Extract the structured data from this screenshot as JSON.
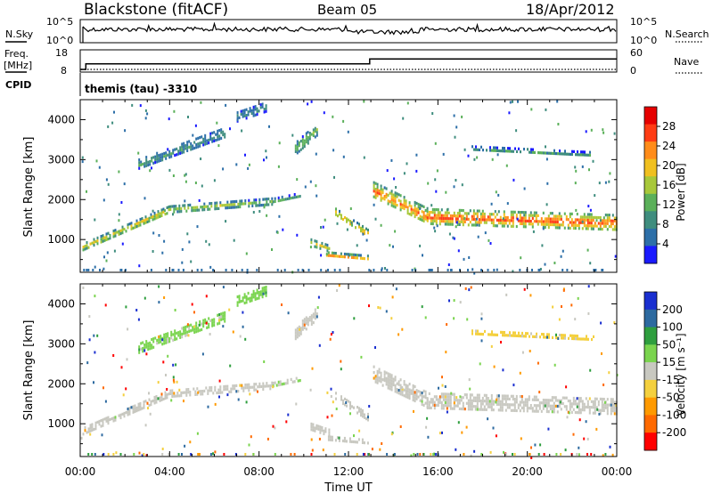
{
  "header": {
    "station": "Blackstone (fitACF)",
    "beam": "Beam 05",
    "date": "18/Apr/2012"
  },
  "noise_panel": {
    "left_label": "N.Sky",
    "right_label": "N.Search",
    "left_ticks": [
      "10^5",
      "10^0"
    ],
    "right_ticks": [
      "10^5",
      "10^0"
    ]
  },
  "freq_panel": {
    "left_label_top": "Freq.",
    "left_label_unit": "[MHz]",
    "left_ticks": [
      "18",
      "8"
    ],
    "right_label": "Nave",
    "right_ticks": [
      "60",
      "0"
    ],
    "cpid_label": "CPID",
    "cpid_text": "themis (tau) -3310",
    "freq_series": {
      "name": "freq",
      "x_hours": [
        0.0,
        0.25,
        0.25,
        12.95,
        12.95,
        24.0
      ],
      "values": [
        8.0,
        8.0,
        11.5,
        11.5,
        14.5,
        14.5
      ]
    }
  },
  "axes": {
    "x_ticks": [
      "00:00",
      "04:00",
      "08:00",
      "12:00",
      "16:00",
      "20:00",
      "00:00"
    ],
    "x_label": "Time UT",
    "y_label": "Slant Range [km]",
    "y_ticks": [
      "4000",
      "3000",
      "2000",
      "1000"
    ]
  },
  "power_colorbar": {
    "title": "Power [dB]",
    "ticks": [
      "28",
      "24",
      "20",
      "16",
      "12",
      "8",
      "4"
    ]
  },
  "velocity_colorbar": {
    "title": "Velocity [m s⁻¹]",
    "ticks": [
      "200",
      "100",
      "50",
      "15",
      "-15",
      "-50",
      "-100",
      "-200"
    ]
  },
  "chart_data": [
    {
      "type": "heatmap",
      "title": "Power [dB]",
      "xlabel": "Time UT",
      "ylabel": "Slant Range [km]",
      "xlim_hours": [
        0,
        24
      ],
      "ylim_km": [
        180,
        4500
      ],
      "color_scale": {
        "min": 0,
        "max": 30,
        "colors": [
          "#1a1aff",
          "#2d6fa8",
          "#3f8d7e",
          "#5bb05a",
          "#a8c83a",
          "#f0c020",
          "#ff8c1a",
          "#ff3c14",
          "#e60000"
        ]
      },
      "bands": [
        {
          "name": "evening band rising",
          "t_start": 0.1,
          "t_end": 4.0,
          "r_start": 830,
          "r_end": 1780,
          "width_km": 180,
          "power_db": 18
        },
        {
          "name": "day band",
          "t_start": 4.0,
          "t_end": 8.6,
          "r_start": 1780,
          "r_end": 1980,
          "width_km": 160,
          "power_db": 15
        },
        {
          "name": "day band late",
          "t_start": 8.6,
          "t_end": 9.8,
          "r_start": 1980,
          "r_end": 2120,
          "width_km": 140,
          "power_db": 10
        },
        {
          "name": "high patch",
          "t_start": 2.6,
          "t_end": 6.5,
          "r_start": 2900,
          "r_end": 3700,
          "width_km": 260,
          "power_db": 9
        },
        {
          "name": "top patch",
          "t_start": 7.0,
          "t_end": 8.3,
          "r_start": 4100,
          "r_end": 4350,
          "width_km": 220,
          "power_db": 9
        },
        {
          "name": "midday patch",
          "t_start": 9.6,
          "t_end": 10.6,
          "r_start": 3300,
          "r_end": 3800,
          "width_km": 300,
          "power_db": 13
        },
        {
          "name": "near patch A",
          "t_start": 10.3,
          "t_end": 11.1,
          "r_start": 950,
          "r_end": 800,
          "width_km": 160,
          "power_db": 18
        },
        {
          "name": "near patch B",
          "t_start": 11.0,
          "t_end": 12.9,
          "r_start": 650,
          "r_end": 560,
          "width_km": 120,
          "power_db": 22
        },
        {
          "name": "descending band",
          "t_start": 11.4,
          "t_end": 12.9,
          "r_start": 1700,
          "r_end": 1150,
          "width_km": 200,
          "power_db": 21
        },
        {
          "name": "afternoon band drop",
          "t_start": 13.1,
          "t_end": 15.5,
          "r_start": 2250,
          "r_end": 1600,
          "width_km": 420,
          "power_db": 23
        },
        {
          "name": "afternoon band",
          "t_start": 15.5,
          "t_end": 24.0,
          "r_start": 1600,
          "r_end": 1450,
          "width_km": 380,
          "power_db": 25
        },
        {
          "name": "upper afternoon",
          "t_start": 17.5,
          "t_end": 23.0,
          "r_start": 3300,
          "r_end": 3150,
          "width_km": 120,
          "power_db": 10
        }
      ]
    },
    {
      "type": "heatmap",
      "title": "Velocity [m s⁻¹]",
      "xlabel": "Time UT",
      "ylabel": "Slant Range [km]",
      "xlim_hours": [
        0,
        24
      ],
      "ylim_km": [
        180,
        4500
      ],
      "color_scale": {
        "min": -250,
        "max": 250,
        "colors": [
          "#ff0000",
          "#ff6a00",
          "#ff9a00",
          "#f4d03f",
          "#c8c8c0",
          "#7ad44e",
          "#2e9e3e",
          "#2d6aa0",
          "#1a2fd0"
        ]
      },
      "bands": [
        {
          "name": "evening band rising",
          "t_start": 0.1,
          "t_end": 4.0,
          "r_start": 830,
          "r_end": 1780,
          "width_km": 180,
          "velocity": 0
        },
        {
          "name": "day band",
          "t_start": 4.0,
          "t_end": 8.6,
          "r_start": 1780,
          "r_end": 1980,
          "width_km": 160,
          "velocity": 0
        },
        {
          "name": "day band late",
          "t_start": 8.6,
          "t_end": 9.8,
          "r_start": 1980,
          "r_end": 2120,
          "width_km": 140,
          "velocity": 30
        },
        {
          "name": "high patch",
          "t_start": 2.6,
          "t_end": 6.5,
          "r_start": 2900,
          "r_end": 3700,
          "width_km": 260,
          "velocity": 40
        },
        {
          "name": "top patch",
          "t_start": 7.0,
          "t_end": 8.3,
          "r_start": 4100,
          "r_end": 4350,
          "width_km": 220,
          "velocity": 60
        },
        {
          "name": "midday patch",
          "t_start": 9.6,
          "t_end": 10.6,
          "r_start": 3300,
          "r_end": 3800,
          "width_km": 300,
          "velocity": 0
        },
        {
          "name": "near patch A",
          "t_start": 10.3,
          "t_end": 11.1,
          "r_start": 950,
          "r_end": 800,
          "width_km": 160,
          "velocity": 0
        },
        {
          "name": "near patch B",
          "t_start": 11.0,
          "t_end": 12.9,
          "r_start": 650,
          "r_end": 560,
          "width_km": 120,
          "velocity": 0
        },
        {
          "name": "descending band",
          "t_start": 11.4,
          "t_end": 12.9,
          "r_start": 1700,
          "r_end": 1150,
          "width_km": 200,
          "velocity": 0
        },
        {
          "name": "afternoon band drop",
          "t_start": 13.1,
          "t_end": 15.5,
          "r_start": 2250,
          "r_end": 1600,
          "width_km": 420,
          "velocity": 0
        },
        {
          "name": "afternoon band",
          "t_start": 15.5,
          "t_end": 24.0,
          "r_start": 1600,
          "r_end": 1450,
          "width_km": 380,
          "velocity": 0
        },
        {
          "name": "upper afternoon",
          "t_start": 17.5,
          "t_end": 23.0,
          "r_start": 3300,
          "r_end": 3150,
          "width_km": 120,
          "velocity": -40
        }
      ]
    }
  ]
}
